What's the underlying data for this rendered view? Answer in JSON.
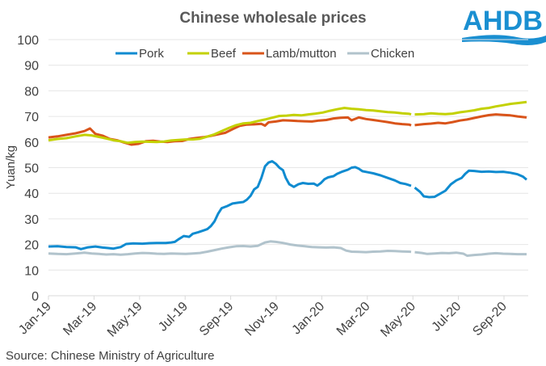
{
  "brand": {
    "logo_text": "AHDB",
    "logo_color": "#1a8fd1"
  },
  "source_note": "Source: Chinese Ministry of Agriculture",
  "chart_data": {
    "type": "line",
    "title": "Chinese wholesale prices",
    "xlabel": "",
    "ylabel": "Yuan/kg",
    "ylim": [
      0,
      100
    ],
    "yticks": [
      0,
      10,
      20,
      30,
      40,
      50,
      60,
      70,
      80,
      90,
      100
    ],
    "xlim_months": [
      0,
      21.1
    ],
    "xtick_labels": [
      "Jan-19",
      "Mar-19",
      "May-19",
      "Jul-19",
      "Sep-19",
      "Nov-19",
      "Jan-20",
      "Mar-20",
      "May-20",
      "Jul-20",
      "Sep-20"
    ],
    "xtick_months": [
      0,
      2,
      4,
      6,
      8,
      10,
      12,
      14,
      16,
      18,
      20
    ],
    "grid": true,
    "legend_position": "top-center",
    "x_unit": "months since Jan-2019 (weekly samples)",
    "series": [
      {
        "name": "Pork",
        "color": "#0f8bd0",
        "gap_after_month": 15.9,
        "points": [
          [
            0,
            19.2
          ],
          [
            0.5,
            19.3
          ],
          [
            1,
            19
          ],
          [
            1.5,
            18.9
          ],
          [
            1.8,
            18.2
          ],
          [
            2.2,
            18.9
          ],
          [
            2.6,
            19.2
          ],
          [
            3,
            18.8
          ],
          [
            3.3,
            18.6
          ],
          [
            3.6,
            18.4
          ],
          [
            4,
            19
          ],
          [
            4.3,
            20.2
          ],
          [
            4.7,
            20.4
          ],
          [
            5.2,
            20.3
          ],
          [
            5.6,
            20.5
          ],
          [
            6,
            20.6
          ],
          [
            6.5,
            20.6
          ],
          [
            6.8,
            20.8
          ],
          [
            7,
            21
          ],
          [
            7.2,
            22
          ],
          [
            7.5,
            23.3
          ],
          [
            7.8,
            23
          ],
          [
            8,
            24.2
          ],
          [
            8.3,
            24.8
          ],
          [
            8.6,
            25.5
          ],
          [
            8.8,
            26
          ],
          [
            9,
            27.2
          ],
          [
            9.2,
            29
          ],
          [
            9.4,
            32
          ],
          [
            9.6,
            34.2
          ],
          [
            9.9,
            35
          ],
          [
            10.2,
            36
          ],
          [
            10.5,
            36.3
          ],
          [
            10.8,
            36.6
          ],
          [
            11,
            37.5
          ],
          [
            11.2,
            39
          ],
          [
            11.4,
            41.5
          ],
          [
            11.6,
            42.5
          ],
          [
            11.8,
            46
          ],
          [
            12,
            50.5
          ],
          [
            12.2,
            52
          ],
          [
            12.4,
            52.5
          ],
          [
            12.6,
            51.5
          ],
          [
            12.8,
            50
          ],
          [
            13,
            49
          ],
          [
            13.15,
            46
          ],
          [
            13.35,
            43.5
          ],
          [
            13.6,
            42.5
          ],
          [
            13.85,
            43.5
          ],
          [
            14.1,
            44
          ],
          [
            14.4,
            43.7
          ],
          [
            14.7,
            43.8
          ],
          [
            14.9,
            43
          ],
          [
            15.1,
            44
          ],
          [
            15.3,
            45.5
          ],
          [
            15.5,
            46.2
          ],
          [
            15.8,
            46.7
          ],
          [
            16,
            47.6
          ],
          [
            16.3,
            48.5
          ],
          [
            16.6,
            49.2
          ],
          [
            16.8,
            50
          ],
          [
            17,
            50.2
          ],
          [
            17.2,
            49.6
          ],
          [
            17.4,
            48.6
          ],
          [
            17.7,
            48.2
          ],
          [
            18,
            47.8
          ],
          [
            18.4,
            47
          ],
          [
            18.8,
            46
          ],
          [
            19.2,
            45
          ],
          [
            19.5,
            44
          ],
          [
            19.8,
            43.6
          ],
          [
            20.1,
            42.9
          ]
        ],
        "points_after_gap": [
          [
            20.3,
            42.2
          ],
          [
            20.6,
            40.5
          ],
          [
            20.8,
            38.8
          ],
          [
            21.1,
            38.5
          ],
          [
            21.4,
            38.6
          ],
          [
            21.7,
            39.8
          ],
          [
            22,
            41
          ],
          [
            22.3,
            43.5
          ],
          [
            22.6,
            45
          ],
          [
            22.9,
            46
          ],
          [
            23.1,
            47.6
          ],
          [
            23.3,
            48.8
          ],
          [
            23.6,
            48.7
          ],
          [
            24,
            48.4
          ],
          [
            24.4,
            48.5
          ],
          [
            24.8,
            48.3
          ],
          [
            25.2,
            48.4
          ],
          [
            25.6,
            48
          ],
          [
            26,
            47.4
          ],
          [
            26.3,
            46.5
          ],
          [
            26.5,
            45.3
          ]
        ]
      },
      {
        "name": "Beef",
        "color": "#c3d100",
        "gap_after_month": 15.9,
        "points": [
          [
            0,
            60.7
          ],
          [
            0.5,
            61.2
          ],
          [
            1,
            61.5
          ],
          [
            1.5,
            62.2
          ],
          [
            2,
            62.8
          ],
          [
            2.4,
            62.6
          ],
          [
            2.8,
            62
          ],
          [
            3.2,
            61.4
          ],
          [
            3.6,
            60.7
          ],
          [
            4,
            60.3
          ],
          [
            4.4,
            59.7
          ],
          [
            4.8,
            60
          ],
          [
            5.2,
            60.2
          ],
          [
            5.6,
            60.1
          ],
          [
            6,
            60
          ],
          [
            6.4,
            60.2
          ],
          [
            6.8,
            60.6
          ],
          [
            7.2,
            60.8
          ],
          [
            7.6,
            61
          ],
          [
            8,
            61
          ],
          [
            8.4,
            61.3
          ],
          [
            8.8,
            62.1
          ],
          [
            9.2,
            63
          ],
          [
            9.6,
            64.3
          ],
          [
            10,
            65.5
          ],
          [
            10.4,
            66.6
          ],
          [
            10.8,
            67.3
          ],
          [
            11.2,
            67.5
          ],
          [
            11.6,
            68.2
          ],
          [
            12,
            68.8
          ],
          [
            12.4,
            69.5
          ],
          [
            12.8,
            70.2
          ],
          [
            13.2,
            70.3
          ],
          [
            13.6,
            70.6
          ],
          [
            14,
            70.4
          ],
          [
            14.4,
            70.8
          ],
          [
            14.8,
            71.1
          ],
          [
            15.2,
            71.5
          ],
          [
            15.6,
            72.2
          ],
          [
            16,
            72.8
          ],
          [
            16.4,
            73.3
          ],
          [
            16.8,
            73
          ],
          [
            17.2,
            72.8
          ],
          [
            17.6,
            72.5
          ],
          [
            18,
            72.3
          ],
          [
            18.4,
            72
          ],
          [
            18.8,
            71.7
          ],
          [
            19.2,
            71.5
          ],
          [
            19.6,
            71.2
          ],
          [
            20,
            71
          ],
          [
            20.1,
            70.8
          ]
        ],
        "points_after_gap": [
          [
            20.3,
            70.8
          ],
          [
            20.8,
            70.9
          ],
          [
            21.2,
            71.2
          ],
          [
            21.6,
            71
          ],
          [
            22,
            70.9
          ],
          [
            22.4,
            71.1
          ],
          [
            22.8,
            71.6
          ],
          [
            23.2,
            72
          ],
          [
            23.6,
            72.4
          ],
          [
            24,
            73
          ],
          [
            24.4,
            73.3
          ],
          [
            24.8,
            73.9
          ],
          [
            25.2,
            74.4
          ],
          [
            25.6,
            74.9
          ],
          [
            26,
            75.2
          ],
          [
            26.5,
            75.6
          ]
        ]
      },
      {
        "name": "Lamb/mutton",
        "color": "#d9541a",
        "gap_after_month": 15.9,
        "points": [
          [
            0,
            61.8
          ],
          [
            0.5,
            62.2
          ],
          [
            1,
            62.8
          ],
          [
            1.5,
            63.4
          ],
          [
            2,
            64.3
          ],
          [
            2.3,
            65.3
          ],
          [
            2.6,
            63.2
          ],
          [
            3,
            62.5
          ],
          [
            3.4,
            61.2
          ],
          [
            3.8,
            60.7
          ],
          [
            4.2,
            59.8
          ],
          [
            4.6,
            59
          ],
          [
            5,
            59.3
          ],
          [
            5.4,
            60.3
          ],
          [
            5.8,
            60.5
          ],
          [
            6.2,
            60.2
          ],
          [
            6.6,
            60
          ],
          [
            7,
            60.3
          ],
          [
            7.4,
            60.4
          ],
          [
            7.8,
            61.2
          ],
          [
            8.2,
            61.6
          ],
          [
            8.6,
            61.9
          ],
          [
            9,
            62.4
          ],
          [
            9.4,
            63
          ],
          [
            9.8,
            63.6
          ],
          [
            10.2,
            65
          ],
          [
            10.6,
            66.3
          ],
          [
            11,
            66.8
          ],
          [
            11.4,
            66.9
          ],
          [
            11.8,
            67.1
          ],
          [
            12,
            66.4
          ],
          [
            12.2,
            67.7
          ],
          [
            12.6,
            68
          ],
          [
            13,
            68.5
          ],
          [
            13.4,
            68.4
          ],
          [
            13.8,
            68.2
          ],
          [
            14.2,
            68.1
          ],
          [
            14.6,
            68
          ],
          [
            15,
            68.4
          ],
          [
            15.4,
            68.6
          ],
          [
            15.8,
            69.2
          ],
          [
            16.2,
            69.5
          ],
          [
            16.6,
            69.6
          ],
          [
            16.8,
            68.5
          ],
          [
            17.2,
            69.6
          ],
          [
            17.6,
            69
          ],
          [
            18,
            68.6
          ],
          [
            18.4,
            68.2
          ],
          [
            18.8,
            67.8
          ],
          [
            19.2,
            67.3
          ],
          [
            19.6,
            67
          ],
          [
            20,
            66.8
          ],
          [
            20.1,
            66.5
          ]
        ],
        "points_after_gap": [
          [
            20.3,
            66.6
          ],
          [
            20.8,
            67
          ],
          [
            21.2,
            67.2
          ],
          [
            21.6,
            67.5
          ],
          [
            22,
            67.3
          ],
          [
            22.4,
            67.8
          ],
          [
            22.8,
            68.4
          ],
          [
            23.2,
            68.8
          ],
          [
            23.6,
            69.4
          ],
          [
            24,
            70
          ],
          [
            24.4,
            70.5
          ],
          [
            24.8,
            70.8
          ],
          [
            25.2,
            70.6
          ],
          [
            25.6,
            70.4
          ],
          [
            26,
            70
          ],
          [
            26.5,
            69.6
          ]
        ]
      },
      {
        "name": "Chicken",
        "color": "#b1c3cc",
        "gap_after_month": 15.9,
        "points": [
          [
            0,
            16.5
          ],
          [
            0.5,
            16.3
          ],
          [
            1,
            16.2
          ],
          [
            1.5,
            16.5
          ],
          [
            2,
            16.8
          ],
          [
            2.4,
            16.5
          ],
          [
            2.8,
            16.3
          ],
          [
            3.2,
            16.1
          ],
          [
            3.6,
            16.2
          ],
          [
            4,
            16
          ],
          [
            4.4,
            16.2
          ],
          [
            4.8,
            16.5
          ],
          [
            5.2,
            16.7
          ],
          [
            5.6,
            16.6
          ],
          [
            6,
            16.4
          ],
          [
            6.4,
            16.3
          ],
          [
            6.8,
            16.5
          ],
          [
            7.2,
            16.4
          ],
          [
            7.6,
            16.3
          ],
          [
            8,
            16.5
          ],
          [
            8.4,
            16.7
          ],
          [
            8.8,
            17.2
          ],
          [
            9.2,
            17.8
          ],
          [
            9.6,
            18.4
          ],
          [
            10,
            18.9
          ],
          [
            10.4,
            19.3
          ],
          [
            10.8,
            19.4
          ],
          [
            11.2,
            19.2
          ],
          [
            11.6,
            19.5
          ],
          [
            12,
            20.8
          ],
          [
            12.3,
            21.2
          ],
          [
            12.6,
            21
          ],
          [
            13,
            20.6
          ],
          [
            13.4,
            20
          ],
          [
            13.8,
            19.6
          ],
          [
            14.2,
            19.3
          ],
          [
            14.6,
            19
          ],
          [
            15,
            18.9
          ],
          [
            15.4,
            18.8
          ],
          [
            15.8,
            18.9
          ],
          [
            16.2,
            18.6
          ],
          [
            16.5,
            17.6
          ],
          [
            16.8,
            17.2
          ],
          [
            17.2,
            17.1
          ],
          [
            17.6,
            17
          ],
          [
            18,
            17.2
          ],
          [
            18.4,
            17.3
          ],
          [
            18.8,
            17.5
          ],
          [
            19.2,
            17.4
          ],
          [
            19.6,
            17.3
          ],
          [
            20,
            17.2
          ],
          [
            20.1,
            17.1
          ]
        ],
        "points_after_gap": [
          [
            20.3,
            17
          ],
          [
            20.7,
            16.7
          ],
          [
            21,
            16.3
          ],
          [
            21.4,
            16.5
          ],
          [
            21.8,
            16.7
          ],
          [
            22.2,
            16.6
          ],
          [
            22.6,
            16.8
          ],
          [
            23,
            16.4
          ],
          [
            23.2,
            15.6
          ],
          [
            23.6,
            15.9
          ],
          [
            24,
            16.1
          ],
          [
            24.4,
            16.4
          ],
          [
            24.8,
            16.6
          ],
          [
            25.2,
            16.4
          ],
          [
            25.6,
            16.3
          ],
          [
            26,
            16.2
          ],
          [
            26.5,
            16.2
          ]
        ]
      }
    ]
  }
}
